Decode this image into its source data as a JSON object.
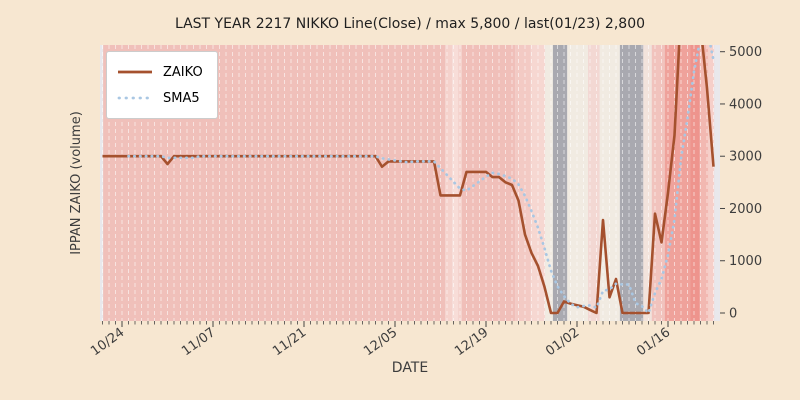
{
  "title": "LAST YEAR 2217 NIKKO Line(Close) / max 5,800 / last(01/23) 2,800",
  "legend": {
    "items": [
      {
        "label": "ZAIKO",
        "style": "solid",
        "color": "#a5512e"
      },
      {
        "label": "SMA5",
        "style": "dotted",
        "color": "#a9c7e3"
      }
    ]
  },
  "x_axis": {
    "label": "DATE",
    "major_ticks": [
      {
        "label": "10/24",
        "day": 3
      },
      {
        "label": "11/07",
        "day": 17
      },
      {
        "label": "11/21",
        "day": 31
      },
      {
        "label": "12/05",
        "day": 45
      },
      {
        "label": "12/19",
        "day": 59
      },
      {
        "label": "01/02",
        "day": 73
      },
      {
        "label": "01/16",
        "day": 87
      }
    ]
  },
  "y_axis": {
    "label": "IPPAN ZAIKO (volume)",
    "ticks": [
      0,
      1000,
      2000,
      3000,
      4000,
      5000
    ]
  },
  "colors": {
    "figure_bg": "#f7e7d1",
    "axes_bg": "#e9e8ec",
    "grid": "#ffffff",
    "text": "#3d3d3d",
    "title_text": "#1f1f1f",
    "tick": "#444444",
    "zaiko": "#a5512e",
    "sma5": "#a9c7e3"
  },
  "chart_data": {
    "type": "line",
    "title": "LAST YEAR 2217 NIKKO Line(Close) / max 5,800 / last(01/23) 2,800",
    "xlabel": "DATE",
    "ylabel": "IPPAN ZAIKO (volume)",
    "ylim": [
      -150,
      5130
    ],
    "grid": "vertical-daily-dashed",
    "legend_position": "upper-left",
    "max_value": 5800,
    "last_point": {
      "date": "01/23",
      "value": 2800
    },
    "dates": [
      "10/21",
      "10/22",
      "10/23",
      "10/24",
      "10/25",
      "10/26",
      "10/27",
      "10/28",
      "10/29",
      "10/30",
      "10/31",
      "11/01",
      "11/02",
      "11/03",
      "11/04",
      "11/05",
      "11/06",
      "11/07",
      "11/08",
      "11/09",
      "11/10",
      "11/11",
      "11/12",
      "11/13",
      "11/14",
      "11/15",
      "11/16",
      "11/17",
      "11/18",
      "11/19",
      "11/20",
      "11/21",
      "11/22",
      "11/23",
      "11/24",
      "11/25",
      "11/26",
      "11/27",
      "11/28",
      "11/29",
      "11/30",
      "12/01",
      "12/02",
      "12/03",
      "12/04",
      "12/05",
      "12/06",
      "12/07",
      "12/08",
      "12/09",
      "12/10",
      "12/11",
      "12/12",
      "12/13",
      "12/14",
      "12/15",
      "12/16",
      "12/17",
      "12/18",
      "12/19",
      "12/20",
      "12/21",
      "12/22",
      "12/23",
      "12/24",
      "12/25",
      "12/26",
      "12/27",
      "12/28",
      "12/29",
      "12/30",
      "12/31",
      "01/01",
      "01/02",
      "01/03",
      "01/04",
      "01/05",
      "01/06",
      "01/07",
      "01/08",
      "01/09",
      "01/10",
      "01/11",
      "01/12",
      "01/13",
      "01/14",
      "01/15",
      "01/16",
      "01/17",
      "01/18",
      "01/19",
      "01/20",
      "01/21",
      "01/22",
      "01/23"
    ],
    "series": [
      {
        "name": "ZAIKO",
        "style": "solid",
        "color": "#a5512e",
        "values": [
          3000,
          3000,
          3000,
          3000,
          3000,
          3000,
          3000,
          3000,
          3000,
          3000,
          2850,
          3000,
          3000,
          3000,
          3000,
          3000,
          3000,
          3000,
          3000,
          3000,
          3000,
          3000,
          3000,
          3000,
          3000,
          3000,
          3000,
          3000,
          3000,
          3000,
          3000,
          3000,
          3000,
          3000,
          3000,
          3000,
          3000,
          3000,
          3000,
          3000,
          3000,
          3000,
          3000,
          2800,
          2900,
          2900,
          2900,
          2900,
          2900,
          2900,
          2900,
          2900,
          2250,
          2250,
          2250,
          2250,
          2700,
          2700,
          2700,
          2700,
          2600,
          2600,
          2500,
          2450,
          2150,
          1500,
          1150,
          900,
          500,
          0,
          0,
          220,
          180,
          150,
          120,
          60,
          0,
          1780,
          300,
          650,
          0,
          0,
          0,
          0,
          0,
          1900,
          1350,
          2300,
          3400,
          5800,
          5800,
          5800,
          5500,
          4300,
          2800
        ]
      },
      {
        "name": "SMA5",
        "style": "dotted",
        "color": "#a9c7e3",
        "derived_from": "5-day moving average of ZAIKO"
      }
    ],
    "background_bands": [
      {
        "from": 0.1,
        "to": 52.7,
        "color": "#f0c0ba"
      },
      {
        "from": 52.7,
        "to": 53.8,
        "color": "#f5d2cc"
      },
      {
        "from": 53.8,
        "to": 54.7,
        "color": "#f8ddd8"
      },
      {
        "from": 54.7,
        "to": 55.3,
        "color": "#f5d2cc"
      },
      {
        "from": 55.3,
        "to": 63.5,
        "color": "#f0bfb9"
      },
      {
        "from": 63.5,
        "to": 65.9,
        "color": "#f3cac4"
      },
      {
        "from": 65.9,
        "to": 68.1,
        "color": "#f6d7d1"
      },
      {
        "from": 68.1,
        "to": 69.3,
        "color": "#f1ebe2"
      },
      {
        "from": 69.3,
        "to": 71.5,
        "color": "#a9a9b0"
      },
      {
        "from": 71.5,
        "to": 74.7,
        "color": "#f1ebe2"
      },
      {
        "from": 74.7,
        "to": 76.5,
        "color": "#f3d8d3"
      },
      {
        "from": 76.5,
        "to": 79.6,
        "color": "#f1ebe2"
      },
      {
        "from": 79.6,
        "to": 83.2,
        "color": "#a9a9b0"
      },
      {
        "from": 83.2,
        "to": 84.5,
        "color": "#f2e3dc"
      },
      {
        "from": 84.5,
        "to": 86.5,
        "color": "#f1c3bd"
      },
      {
        "from": 86.5,
        "to": 90.4,
        "color": "#efa29b"
      },
      {
        "from": 90.4,
        "to": 91.9,
        "color": "#ee948d"
      },
      {
        "from": 91.9,
        "to": 93.2,
        "color": "#f2b8b1"
      },
      {
        "from": 93.2,
        "to": 94.1,
        "color": "#f6cfc9"
      }
    ]
  }
}
